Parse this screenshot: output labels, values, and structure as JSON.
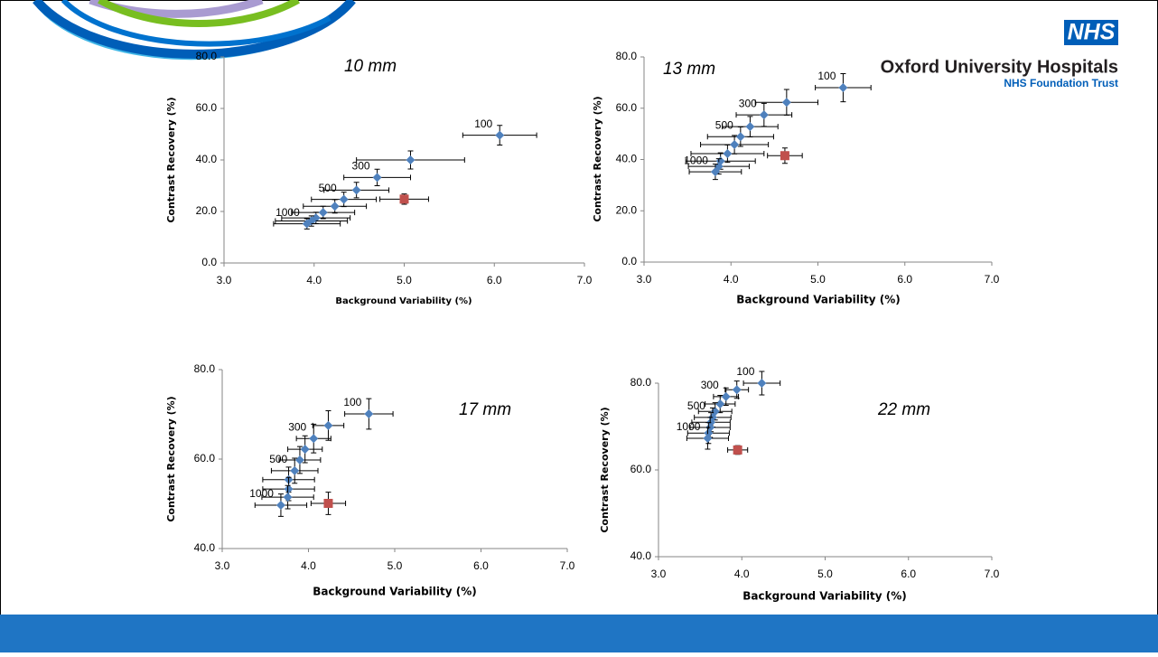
{
  "header": {
    "logo": "NHS",
    "title": "Oxford University Hospitals",
    "subtitle": "NHS Foundation Trust"
  },
  "chart_data": [
    {
      "type": "scatter",
      "annotation": "10 mm",
      "x_label": "Background Variability (%)",
      "y_label": "Contrast Recovery (%)",
      "xlim": [
        3,
        7
      ],
      "xticks": [
        {
          "value": 3,
          "label": "3.0"
        },
        {
          "value": 4,
          "label": "4.0"
        },
        {
          "value": 5,
          "label": "5.0"
        },
        {
          "value": 6,
          "label": "6.0"
        },
        {
          "value": 7,
          "label": "7.0"
        }
      ],
      "ylim": [
        0,
        80
      ],
      "yticks": [
        {
          "value": 0,
          "label": "0.0"
        },
        {
          "value": 20,
          "label": "20.0"
        },
        {
          "value": 40,
          "label": "40.0"
        },
        {
          "value": 60,
          "label": "60.0"
        },
        {
          "value": 80,
          "label": "80.0"
        }
      ],
      "series": [
        {
          "color": "#4f81bd",
          "marker": "diamond",
          "x": [
            6.06,
            5.07,
            4.7,
            4.47,
            4.33,
            4.23,
            4.1,
            4.02,
            3.97,
            3.92
          ],
          "values": [
            49.6,
            40.0,
            33.2,
            28.3,
            24.7,
            22.0,
            19.6,
            17.5,
            16.3,
            15.2
          ],
          "xerr": [
            0.41,
            0.6,
            0.37,
            0.36,
            0.36,
            0.35,
            0.35,
            0.38,
            0.4,
            0.37
          ],
          "yerr": [
            3.8,
            3.5,
            3.2,
            3.0,
            2.8,
            2.6,
            2.4,
            2.2,
            2.0,
            2.0
          ],
          "point_labels": [
            "100",
            null,
            "300",
            null,
            "500",
            null,
            null,
            null,
            null,
            "1000"
          ]
        },
        {
          "color": "#c0504d",
          "marker": "square",
          "x": [
            5.0
          ],
          "values": [
            24.8
          ],
          "xerr": [
            0.27
          ],
          "yerr": [
            2.0
          ]
        }
      ]
    },
    {
      "type": "scatter",
      "annotation": "13 mm",
      "x_label": "Background Variability (%)",
      "y_label": "Contrast Recovery (%)",
      "xlim": [
        3,
        7
      ],
      "xticks": [
        {
          "value": 3,
          "label": "3.0"
        },
        {
          "value": 4,
          "label": "4.0"
        },
        {
          "value": 5,
          "label": "5.0"
        },
        {
          "value": 6,
          "label": "6.0"
        },
        {
          "value": 7,
          "label": "7.0"
        }
      ],
      "ylim": [
        0,
        80
      ],
      "yticks": [
        {
          "value": 0,
          "label": "0.0"
        },
        {
          "value": 20,
          "label": "20.0"
        },
        {
          "value": 40,
          "label": "40.0"
        },
        {
          "value": 60,
          "label": "60.0"
        },
        {
          "value": 80,
          "label": "80.0"
        }
      ],
      "series": [
        {
          "color": "#4f81bd",
          "marker": "diamond",
          "x": [
            5.29,
            4.64,
            4.38,
            4.22,
            4.11,
            4.04,
            3.96,
            3.88,
            3.86,
            3.82
          ],
          "values": [
            68.0,
            62.3,
            57.4,
            52.8,
            48.9,
            45.8,
            42.3,
            39.4,
            37.3,
            35.2
          ],
          "xerr": [
            0.32,
            0.36,
            0.32,
            0.32,
            0.38,
            0.39,
            0.42,
            0.4,
            0.35,
            0.3
          ],
          "yerr": [
            5.5,
            5.0,
            4.5,
            4.0,
            3.8,
            3.6,
            3.4,
            3.2,
            3.0,
            3.0
          ],
          "point_labels": [
            "100",
            null,
            "300",
            null,
            "500",
            null,
            null,
            null,
            null,
            "1000"
          ]
        },
        {
          "color": "#c0504d",
          "marker": "square",
          "x": [
            4.62
          ],
          "values": [
            41.5
          ],
          "xerr": [
            0.2
          ],
          "yerr": [
            3.0
          ]
        }
      ]
    },
    {
      "type": "scatter",
      "annotation": "17 mm",
      "x_label": "Background Variability (%)",
      "y_label": "Contrast Recovery (%)",
      "xlim": [
        3,
        7
      ],
      "xticks": [
        {
          "value": 3,
          "label": "3.0"
        },
        {
          "value": 4,
          "label": "4.0"
        },
        {
          "value": 5,
          "label": "5.0"
        },
        {
          "value": 6,
          "label": "6.0"
        },
        {
          "value": 7,
          "label": "7.0"
        }
      ],
      "ylim": [
        40,
        80
      ],
      "yticks": [
        {
          "value": 40,
          "label": "40.0"
        },
        {
          "value": 60,
          "label": "60.0"
        },
        {
          "value": 80,
          "label": "80.0"
        }
      ],
      "series": [
        {
          "color": "#4f81bd",
          "marker": "diamond",
          "x": [
            4.7,
            4.23,
            4.06,
            3.96,
            3.9,
            3.84,
            3.77,
            3.77,
            3.76,
            3.68
          ],
          "values": [
            70.1,
            67.5,
            64.6,
            62.2,
            59.8,
            57.4,
            55.4,
            53.3,
            51.5,
            49.7
          ],
          "xerr": [
            0.28,
            0.18,
            0.2,
            0.2,
            0.24,
            0.27,
            0.3,
            0.3,
            0.3,
            0.3
          ],
          "yerr": [
            3.4,
            3.3,
            3.2,
            3.0,
            3.0,
            2.8,
            2.8,
            2.6,
            2.6,
            2.5
          ],
          "point_labels": [
            "100",
            null,
            "300",
            null,
            null,
            "500",
            null,
            null,
            null,
            "1000"
          ]
        },
        {
          "color": "#c0504d",
          "marker": "square",
          "x": [
            4.23
          ],
          "values": [
            50.1
          ],
          "xerr": [
            0.2
          ],
          "yerr": [
            2.5
          ]
        }
      ]
    },
    {
      "type": "scatter",
      "annotation": "22 mm",
      "x_label": "Background Variability (%)",
      "y_label": "Contrast Recovery (%)",
      "xlim": [
        3,
        7
      ],
      "xticks": [
        {
          "value": 3,
          "label": "3.0"
        },
        {
          "value": 4,
          "label": "4.0"
        },
        {
          "value": 5,
          "label": "5.0"
        },
        {
          "value": 6,
          "label": "6.0"
        },
        {
          "value": 7,
          "label": "7.0"
        }
      ],
      "ylim": [
        40,
        80
      ],
      "yticks": [
        {
          "value": 40,
          "label": "40.0"
        },
        {
          "value": 60,
          "label": "60.0"
        },
        {
          "value": 80,
          "label": "80.0"
        }
      ],
      "series": [
        {
          "color": "#4f81bd",
          "marker": "diamond",
          "x": [
            4.24,
            3.94,
            3.81,
            3.74,
            3.68,
            3.65,
            3.63,
            3.62,
            3.6,
            3.59
          ],
          "values": [
            80.0,
            78.5,
            76.9,
            75.2,
            73.5,
            72.1,
            71.0,
            69.8,
            68.5,
            67.3
          ],
          "xerr": [
            0.22,
            0.14,
            0.15,
            0.18,
            0.2,
            0.22,
            0.23,
            0.24,
            0.25,
            0.25
          ],
          "yerr": [
            2.7,
            2.0,
            2.0,
            2.0,
            2.0,
            2.2,
            2.2,
            2.3,
            2.4,
            2.5
          ],
          "point_labels": [
            "100",
            null,
            "300",
            null,
            null,
            "500",
            null,
            null,
            null,
            "1000"
          ]
        },
        {
          "color": "#c0504d",
          "marker": "square",
          "x": [
            3.95
          ],
          "values": [
            64.6
          ],
          "xerr": [
            0.12
          ],
          "yerr": [
            1.0
          ]
        }
      ]
    }
  ]
}
